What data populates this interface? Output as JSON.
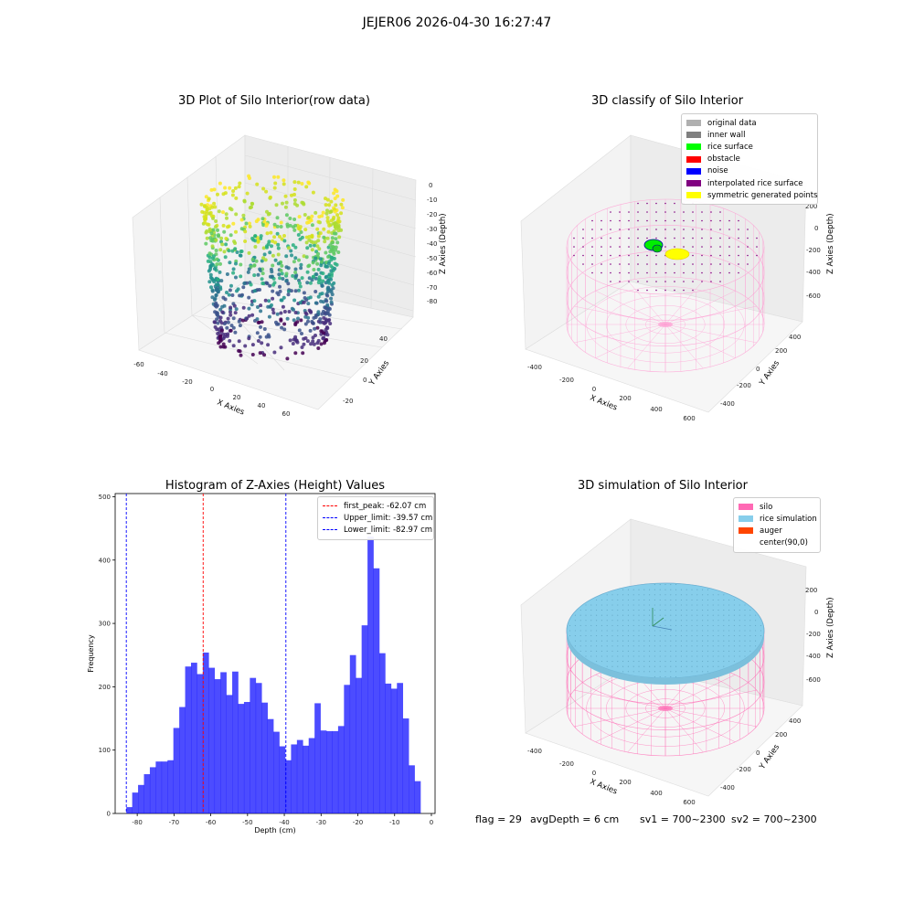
{
  "figure": {
    "suptitle": "JEJER06 2026-04-30 16:27:47",
    "status": {
      "flag": "flag = 29",
      "avg_depth": "avgDepth = 6 cm",
      "sv1": "sv1 = 700~2300",
      "sv2": "sv2 = 700~2300"
    }
  },
  "panel_tl": {
    "title": "3D Plot of Silo Interior(row data)",
    "xlabel": "X Axies",
    "ylabel": "Y Axies",
    "zlabel": "Z Axies (Depth)",
    "xticks": [
      "-60",
      "-40",
      "-20",
      "0",
      "20",
      "40",
      "60"
    ],
    "yticks": [
      "40",
      "20",
      "0",
      "-20"
    ],
    "zticks": [
      "0",
      "-10",
      "-20",
      "-30",
      "-40",
      "-50",
      "-60",
      "-70",
      "-80"
    ],
    "colormap": "viridis"
  },
  "panel_tr": {
    "title": "3D classify of Silo Interior",
    "xlabel": "X Axies",
    "ylabel": "Y Axies",
    "zlabel": "Z Axies (Depth)",
    "xticks": [
      "-400",
      "-200",
      "0",
      "200",
      "400",
      "600"
    ],
    "yticks": [
      "400",
      "200",
      "0",
      "-200",
      "-400"
    ],
    "zticks": [
      "200",
      "0",
      "-200",
      "-400",
      "-600"
    ],
    "legend": [
      {
        "label": "original data",
        "color": "#b0b0b0"
      },
      {
        "label": "inner wall",
        "color": "#808080"
      },
      {
        "label": "rice surface",
        "color": "#00ff00"
      },
      {
        "label": "obstacle",
        "color": "#ff0000"
      },
      {
        "label": "noise",
        "color": "#0000ff"
      },
      {
        "label": "interpolated rice surface",
        "color": "#800080"
      },
      {
        "label": "symmetric generated points",
        "color": "#ffff00"
      }
    ]
  },
  "panel_br": {
    "title": "3D simulation of Silo Interior",
    "xlabel": "X Axies",
    "ylabel": "Y Axies",
    "zlabel": "Z Axies (Depth)",
    "xticks": [
      "-400",
      "-200",
      "0",
      "200",
      "400",
      "600"
    ],
    "yticks": [
      "400",
      "200",
      "0",
      "-200",
      "-400"
    ],
    "zticks": [
      "200",
      "0",
      "-200",
      "-400",
      "-600"
    ],
    "legend": [
      {
        "label": "silo",
        "color": "#ff69b4"
      },
      {
        "label": "rice simulation",
        "color": "#87ceeb"
      },
      {
        "label": "auger",
        "color": "#ff4500"
      },
      {
        "label": "center(90,0)",
        "color": "#ffffff"
      }
    ]
  },
  "chart_data": {
    "type": "bar",
    "title": "Histogram of Z-Axies (Height) Values",
    "xlabel": "Depth (cm)",
    "ylabel": "Frequency",
    "xlim": [
      -86,
      1
    ],
    "ylim": [
      0,
      505
    ],
    "xticks": [
      -80,
      -70,
      -60,
      -50,
      -40,
      -30,
      -20,
      -10,
      0
    ],
    "yticks": [
      0,
      100,
      200,
      300,
      400,
      500
    ],
    "bar_color": "#0000ff",
    "bin_width": 1.6,
    "bin_start": -82.97,
    "values": [
      10,
      33,
      45,
      62,
      73,
      82,
      82,
      84,
      135,
      168,
      232,
      238,
      220,
      254,
      230,
      212,
      223,
      187,
      224,
      173,
      176,
      214,
      206,
      175,
      149,
      129,
      106,
      84,
      109,
      116,
      107,
      119,
      174,
      131,
      130,
      130,
      138,
      203,
      250,
      214,
      297,
      437,
      387,
      253,
      205,
      197,
      206,
      150,
      76,
      51
    ],
    "vlines": [
      {
        "label": "first_peak: -62.07 cm",
        "x": -62.07,
        "color": "#ff0000"
      },
      {
        "label": "Upper_limit: -39.57 cm",
        "x": -39.57,
        "color": "#0000ff"
      },
      {
        "label": "Lower_limit: -82.97 cm",
        "x": -82.97,
        "color": "#0000ff"
      }
    ],
    "legend_position": "upper right"
  }
}
